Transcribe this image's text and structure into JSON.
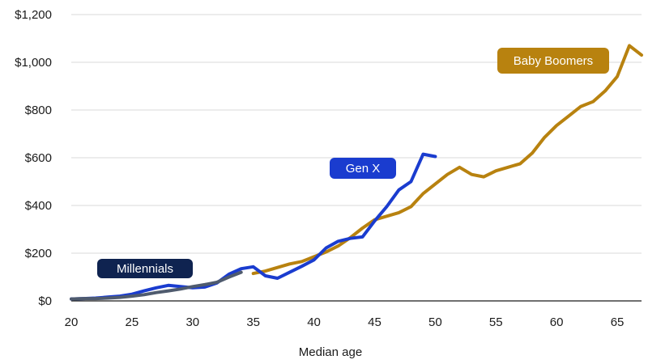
{
  "chart_data": {
    "type": "line",
    "title": "",
    "xlabel": "Median age",
    "ylabel": "",
    "xlim": [
      20,
      67
    ],
    "ylim": [
      0,
      1200
    ],
    "grid": "horizontal",
    "x_ticks": [
      "20",
      "25",
      "30",
      "35",
      "40",
      "45",
      "50",
      "55",
      "60",
      "65"
    ],
    "y_ticks": [
      "$0",
      "$200",
      "$400",
      "$600",
      "$800",
      "$1,000",
      "$1,200"
    ],
    "colors": {
      "grid": "#d9d9d9",
      "axis": "#1b1b1b"
    },
    "series": [
      {
        "name": "Baby Boomers",
        "color": "#b8820f",
        "label_color": "#b8820f",
        "x": [
          35,
          36,
          37,
          38,
          39,
          40,
          41,
          42,
          43,
          44,
          45,
          46,
          47,
          48,
          49,
          50,
          51,
          52,
          53,
          54,
          55,
          56,
          57,
          58,
          59,
          60,
          61,
          62,
          63,
          64,
          65,
          66,
          67
        ],
        "y": [
          115,
          125,
          140,
          155,
          165,
          185,
          205,
          230,
          265,
          305,
          340,
          355,
          370,
          395,
          450,
          490,
          530,
          560,
          530,
          520,
          545,
          560,
          575,
          620,
          685,
          735,
          775,
          815,
          835,
          880,
          940,
          1070,
          1030
        ]
      },
      {
        "name": "Gen X",
        "color": "#1a3ccf",
        "label_color": "#1a3ccf",
        "x": [
          20,
          21,
          22,
          23,
          24,
          25,
          26,
          27,
          28,
          29,
          30,
          31,
          32,
          33,
          34,
          35,
          36,
          37,
          38,
          39,
          40,
          41,
          42,
          43,
          44,
          45,
          46,
          47,
          48,
          49,
          50
        ],
        "y": [
          8,
          10,
          12,
          16,
          20,
          28,
          42,
          55,
          65,
          60,
          55,
          58,
          75,
          112,
          135,
          143,
          105,
          95,
          120,
          145,
          172,
          222,
          250,
          262,
          268,
          335,
          395,
          465,
          500,
          615,
          605
        ]
      },
      {
        "name": "Millennials",
        "color": "#4f5b6e",
        "label_color": "#0f2350",
        "x": [
          20,
          21,
          22,
          23,
          24,
          25,
          26,
          27,
          28,
          29,
          30,
          31,
          32,
          33,
          34
        ],
        "y": [
          8,
          10,
          10,
          12,
          15,
          20,
          26,
          35,
          42,
          50,
          60,
          68,
          78,
          100,
          120
        ]
      }
    ]
  }
}
